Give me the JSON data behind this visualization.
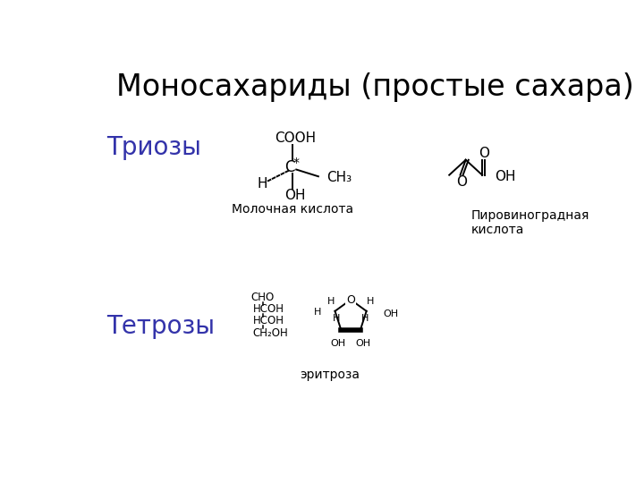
{
  "title": "Моносахариды (простые сахара)",
  "title_fontsize": 24,
  "bg_color": "#ffffff",
  "trioses_label": "Триозы",
  "trioses_color": "#3333aa",
  "trioses_fontsize": 20,
  "tetroses_label": "Тетрозы",
  "tetroses_color": "#3333aa",
  "tetroses_fontsize": 20,
  "lactic_label": "Молочная кислота",
  "lactic_fontsize": 10,
  "pyruvic_label": "Пировиноградная\nкислота",
  "pyruvic_fontsize": 10,
  "erythrose_label": "эритроза",
  "erythrose_fontsize": 10,
  "text_color": "#000000"
}
